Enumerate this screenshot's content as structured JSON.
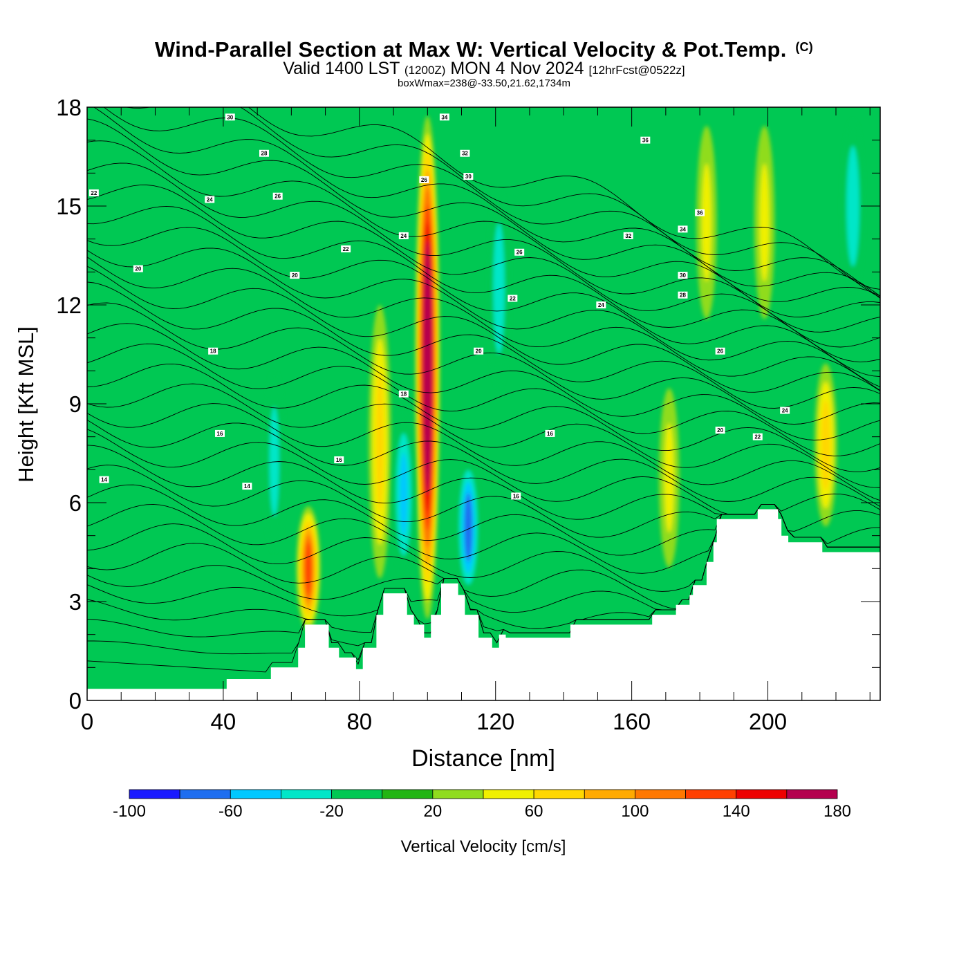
{
  "title": {
    "main": "Wind-Parallel Section at Max W: Vertical Velocity & Pot.Temp.",
    "copyright": "(C)",
    "valid_prefix": "Valid 1400 LST",
    "valid_utc": "(1200Z)",
    "valid_date": "MON 4 Nov 2024",
    "valid_fcst": "[12hrFcst@0522z]",
    "subtitle": "boxWmax=238@-33.50,21.62,1734m"
  },
  "chart_data": {
    "type": "heatmap",
    "xlabel": "Distance [nm]",
    "ylabel": "Height [Kft MSL]",
    "xlim": [
      0,
      233
    ],
    "ylim": [
      0,
      18
    ],
    "x_ticks": [
      "0",
      "40",
      "80",
      "120",
      "160",
      "200"
    ],
    "y_ticks": [
      "0",
      "3",
      "6",
      "9",
      "12",
      "15",
      "18"
    ],
    "colorbar": {
      "label": "Vertical Velocity [cm/s]",
      "levels": [
        -100,
        -80,
        -60,
        -40,
        -20,
        0,
        20,
        40,
        60,
        80,
        100,
        120,
        140,
        160,
        180
      ],
      "tick_labels": [
        "-100",
        "-60",
        "-20",
        "20",
        "60",
        "100",
        "140",
        "180"
      ],
      "colors": [
        "#1a1aff",
        "#1e6ef0",
        "#00c8ff",
        "#00e6c8",
        "#00c853",
        "#22b514",
        "#90dc1e",
        "#f0f000",
        "#ffd700",
        "#ffaa00",
        "#ff7800",
        "#ff4000",
        "#ee0000",
        "#b4004e"
      ]
    },
    "background_color": "#00c853",
    "updraft_columns": [
      {
        "x": 100,
        "y_range": [
          2.2,
          18
        ],
        "peak": 180
      },
      {
        "x": 86,
        "y_range": [
          3.2,
          12.5
        ],
        "peak": 50
      },
      {
        "x": 65,
        "y_range": [
          2.0,
          6.0
        ],
        "peak": 110
      },
      {
        "x": 171,
        "y_range": [
          3.5,
          10
        ],
        "peak": 30
      },
      {
        "x": 217,
        "y_range": [
          5.0,
          10.5
        ],
        "peak": 55
      },
      {
        "x": 199,
        "y_range": [
          11,
          18
        ],
        "peak": 30
      },
      {
        "x": 182,
        "y_range": [
          11,
          18
        ],
        "peak": 30
      }
    ],
    "downdraft_columns": [
      {
        "x": 93,
        "y_range": [
          3.5,
          9
        ],
        "peak": -50
      },
      {
        "x": 112,
        "y_range": [
          3.0,
          7.5
        ],
        "peak": -75
      },
      {
        "x": 55,
        "y_range": [
          4,
          10.5
        ],
        "peak": -30
      },
      {
        "x": 121,
        "y_range": [
          9,
          16
        ],
        "peak": -35
      },
      {
        "x": 225,
        "y_range": [
          12,
          18
        ],
        "peak": -40
      }
    ],
    "terrain": {
      "x": [
        0,
        41,
        54,
        62,
        64,
        71,
        74,
        79,
        81,
        85,
        87,
        94,
        96,
        99,
        101,
        104,
        109,
        111,
        115,
        119,
        121,
        123,
        142,
        166,
        173,
        177,
        178,
        182,
        184,
        185,
        190,
        197,
        203,
        204,
        206,
        216,
        232,
        233
      ],
      "y": [
        0.35,
        0.65,
        1.0,
        1.6,
        2.3,
        1.6,
        1.3,
        0.95,
        1.6,
        2.6,
        3.25,
        2.6,
        2.3,
        1.9,
        2.6,
        3.55,
        3.2,
        2.6,
        1.9,
        1.6,
        2.0,
        1.9,
        2.3,
        2.6,
        2.9,
        3.2,
        3.5,
        4.2,
        4.8,
        5.5,
        5.5,
        5.8,
        5.5,
        5.0,
        4.8,
        4.5,
        4.5,
        4.5
      ]
    },
    "theta_contour_labels": [
      {
        "x": 2,
        "y": 15.4,
        "text": "22"
      },
      {
        "x": 15,
        "y": 13.1,
        "text": "20"
      },
      {
        "x": 36,
        "y": 15.2,
        "text": "24"
      },
      {
        "x": 42,
        "y": 17.7,
        "text": "30"
      },
      {
        "x": 52,
        "y": 16.6,
        "text": "28"
      },
      {
        "x": 56,
        "y": 15.3,
        "text": "26"
      },
      {
        "x": 61,
        "y": 12.9,
        "text": "20"
      },
      {
        "x": 76,
        "y": 13.7,
        "text": "22"
      },
      {
        "x": 93,
        "y": 14.1,
        "text": "24"
      },
      {
        "x": 99,
        "y": 15.8,
        "text": "26"
      },
      {
        "x": 105,
        "y": 17.7,
        "text": "34"
      },
      {
        "x": 111,
        "y": 16.6,
        "text": "32"
      },
      {
        "x": 112,
        "y": 15.9,
        "text": "30"
      },
      {
        "x": 127,
        "y": 13.6,
        "text": "26"
      },
      {
        "x": 125,
        "y": 12.2,
        "text": "22"
      },
      {
        "x": 115,
        "y": 10.6,
        "text": "20"
      },
      {
        "x": 93,
        "y": 9.3,
        "text": "18"
      },
      {
        "x": 37,
        "y": 10.6,
        "text": "18"
      },
      {
        "x": 39,
        "y": 8.1,
        "text": "16"
      },
      {
        "x": 74,
        "y": 7.3,
        "text": "16"
      },
      {
        "x": 136,
        "y": 8.1,
        "text": "16"
      },
      {
        "x": 126,
        "y": 6.2,
        "text": "16"
      },
      {
        "x": 5,
        "y": 6.7,
        "text": "14"
      },
      {
        "x": 47,
        "y": 6.5,
        "text": "14"
      },
      {
        "x": 151,
        "y": 12.0,
        "text": "24"
      },
      {
        "x": 159,
        "y": 14.1,
        "text": "32"
      },
      {
        "x": 164,
        "y": 17.0,
        "text": "36"
      },
      {
        "x": 175,
        "y": 14.3,
        "text": "34"
      },
      {
        "x": 175,
        "y": 12.9,
        "text": "30"
      },
      {
        "x": 175,
        "y": 12.3,
        "text": "28"
      },
      {
        "x": 180,
        "y": 14.8,
        "text": "36"
      },
      {
        "x": 186,
        "y": 10.6,
        "text": "26"
      },
      {
        "x": 186,
        "y": 8.2,
        "text": "20"
      },
      {
        "x": 197,
        "y": 8.0,
        "text": "22"
      },
      {
        "x": 205,
        "y": 8.8,
        "text": "24"
      }
    ]
  }
}
